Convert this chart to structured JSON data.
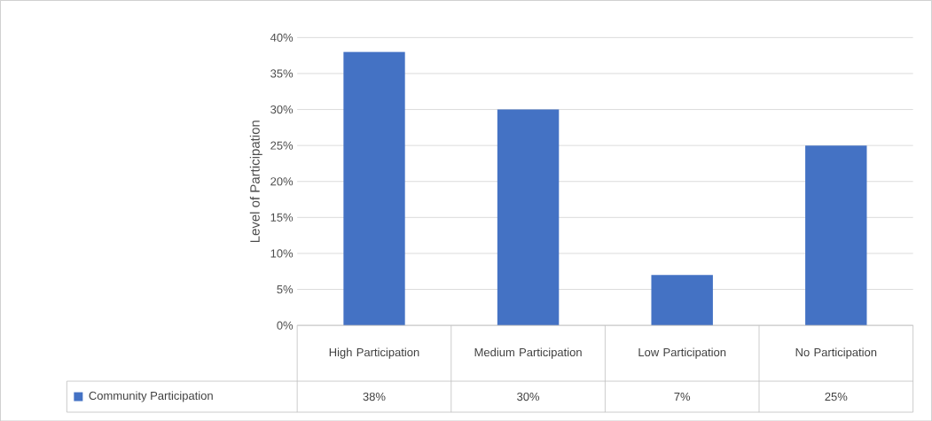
{
  "chart_data": {
    "type": "bar",
    "ylabel": "Level of Participation",
    "categories": [
      "High Participation",
      "Medium Participation",
      "Low Participation",
      "No Participation"
    ],
    "series": [
      {
        "name": "Community Participation",
        "color": "#4472c4",
        "values": [
          38,
          30,
          7,
          25
        ],
        "value_labels": [
          "38%",
          "30%",
          "7%",
          "25%"
        ]
      }
    ],
    "ylim": [
      0,
      40
    ],
    "yticks": [
      {
        "value": 0,
        "label": "0%"
      },
      {
        "value": 5,
        "label": "5%"
      },
      {
        "value": 10,
        "label": "10%"
      },
      {
        "value": 15,
        "label": "15%"
      },
      {
        "value": 20,
        "label": "20%"
      },
      {
        "value": 25,
        "label": "25%"
      },
      {
        "value": 30,
        "label": "30%"
      },
      {
        "value": 35,
        "label": "35%"
      },
      {
        "value": 40,
        "label": "40%"
      }
    ],
    "grid": "y",
    "legend": "bottom"
  }
}
